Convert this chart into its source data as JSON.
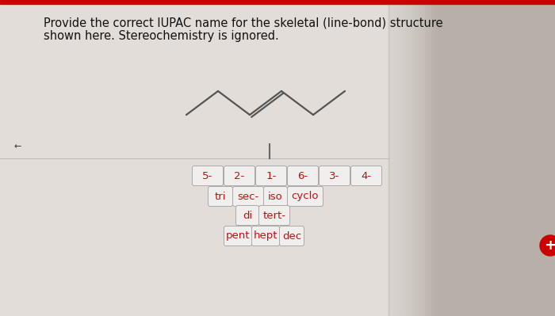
{
  "bg_light": "#e2ddd8",
  "bg_right": "#b8b0a8",
  "title_line1": "Provide the correct IUPAC name for the skeletal (line-bond) structure",
  "title_line2": "shown here. Stereochemistry is ignored.",
  "title_fontsize": 10.5,
  "structure_color": "#555555",
  "divider_color": "#bbbbbb",
  "cursor_color": "#666666",
  "row1_buttons": [
    "5-",
    "2-",
    "1-",
    "6-",
    "3-",
    "4-"
  ],
  "row2_buttons": [
    "tri",
    "sec-",
    "iso",
    "cyclo"
  ],
  "row3_buttons": [
    "di",
    "tert-"
  ],
  "row4_buttons": [
    "pent",
    "hept",
    "dec"
  ],
  "button_text_color": "#bb1111",
  "button_border_color": "#aaaaaa",
  "button_bg": "#f0efed",
  "button_fontsize": 9.5,
  "red_bar_color": "#cc0000",
  "red_circle_color": "#cc0000"
}
